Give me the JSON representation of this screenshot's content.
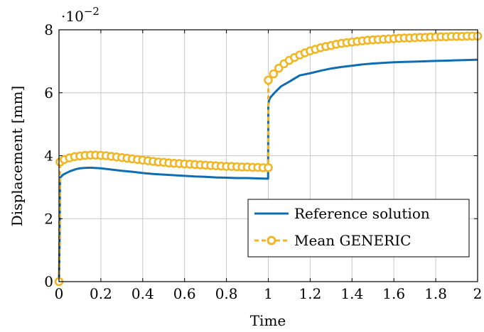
{
  "chart_data": {
    "type": "line",
    "title": "",
    "xlabel": "Time",
    "ylabel": "Displacement [mm]",
    "xlim": [
      0,
      2
    ],
    "ylim": [
      0,
      8
    ],
    "xticks": [
      0,
      0.2,
      0.4,
      0.6,
      0.8,
      1,
      1.2,
      1.4,
      1.6,
      1.8,
      2
    ],
    "xtick_labels": [
      "0",
      "0.2",
      "0.4",
      "0.6",
      "0.8",
      "1",
      "1.2",
      "1.4",
      "1.6",
      "1.8",
      "2"
    ],
    "yticks": [
      0,
      2,
      4,
      6,
      8
    ],
    "ytick_labels": [
      "0",
      "2",
      "4",
      "6",
      "8"
    ],
    "y_scale_base": "·10",
    "y_scale_exp": "−2",
    "grid": true,
    "legend_position": "bottom-right",
    "series": [
      {
        "name": "Reference solution",
        "color": "#0f6db3",
        "style": "solid",
        "x": [
          0,
          0.003,
          0.005,
          0.02,
          0.05,
          0.08,
          0.1,
          0.12,
          0.15,
          0.2,
          0.25,
          0.3,
          0.35,
          0.4,
          0.45,
          0.5,
          0.55,
          0.6,
          0.65,
          0.7,
          0.75,
          0.8,
          0.85,
          0.9,
          0.95,
          0.999,
          1.0,
          1.003,
          1.01,
          1.03,
          1.06,
          1.1,
          1.15,
          1.2,
          1.25,
          1.3,
          1.35,
          1.4,
          1.45,
          1.5,
          1.55,
          1.6,
          1.65,
          1.7,
          1.75,
          1.8,
          1.85,
          1.9,
          1.95,
          2.0
        ],
        "y": [
          0,
          1.2,
          3.3,
          3.4,
          3.5,
          3.57,
          3.6,
          3.61,
          3.62,
          3.6,
          3.56,
          3.52,
          3.49,
          3.45,
          3.42,
          3.4,
          3.38,
          3.36,
          3.34,
          3.33,
          3.31,
          3.3,
          3.29,
          3.29,
          3.28,
          3.27,
          5.6,
          5.75,
          5.85,
          6.0,
          6.2,
          6.35,
          6.55,
          6.62,
          6.7,
          6.77,
          6.82,
          6.86,
          6.9,
          6.93,
          6.95,
          6.97,
          6.98,
          6.99,
          7.0,
          7.01,
          7.02,
          7.03,
          7.04,
          7.05
        ]
      },
      {
        "name": "Mean GENERIC",
        "color": "#f0b624",
        "style": "dashed-circle",
        "x": [
          0,
          0.005,
          0.025,
          0.05,
          0.075,
          0.1,
          0.125,
          0.15,
          0.175,
          0.2,
          0.225,
          0.25,
          0.275,
          0.3,
          0.325,
          0.35,
          0.375,
          0.4,
          0.425,
          0.45,
          0.475,
          0.5,
          0.525,
          0.55,
          0.575,
          0.6,
          0.625,
          0.65,
          0.675,
          0.7,
          0.725,
          0.75,
          0.775,
          0.8,
          0.825,
          0.85,
          0.875,
          0.9,
          0.925,
          0.95,
          0.975,
          1.0,
          1.0,
          1.025,
          1.05,
          1.075,
          1.1,
          1.125,
          1.15,
          1.175,
          1.2,
          1.225,
          1.25,
          1.275,
          1.3,
          1.325,
          1.35,
          1.375,
          1.4,
          1.425,
          1.45,
          1.475,
          1.5,
          1.525,
          1.55,
          1.575,
          1.6,
          1.625,
          1.65,
          1.675,
          1.7,
          1.725,
          1.75,
          1.775,
          1.8,
          1.825,
          1.85,
          1.875,
          1.9,
          1.925,
          1.95,
          1.975,
          2.0
        ],
        "y": [
          0,
          3.8,
          3.88,
          3.93,
          3.97,
          3.99,
          4.01,
          4.02,
          4.02,
          4.01,
          4.0,
          3.98,
          3.96,
          3.94,
          3.92,
          3.9,
          3.88,
          3.86,
          3.84,
          3.82,
          3.8,
          3.79,
          3.77,
          3.76,
          3.75,
          3.74,
          3.73,
          3.72,
          3.71,
          3.7,
          3.69,
          3.68,
          3.67,
          3.66,
          3.66,
          3.65,
          3.64,
          3.64,
          3.63,
          3.63,
          3.62,
          3.62,
          6.4,
          6.6,
          6.78,
          6.92,
          7.03,
          7.12,
          7.2,
          7.27,
          7.33,
          7.38,
          7.43,
          7.47,
          7.5,
          7.54,
          7.57,
          7.59,
          7.61,
          7.63,
          7.65,
          7.67,
          7.68,
          7.69,
          7.7,
          7.71,
          7.72,
          7.73,
          7.74,
          7.74,
          7.75,
          7.76,
          7.76,
          7.77,
          7.77,
          7.78,
          7.78,
          7.79,
          7.79,
          7.79,
          7.8,
          7.8,
          7.8
        ]
      }
    ]
  }
}
